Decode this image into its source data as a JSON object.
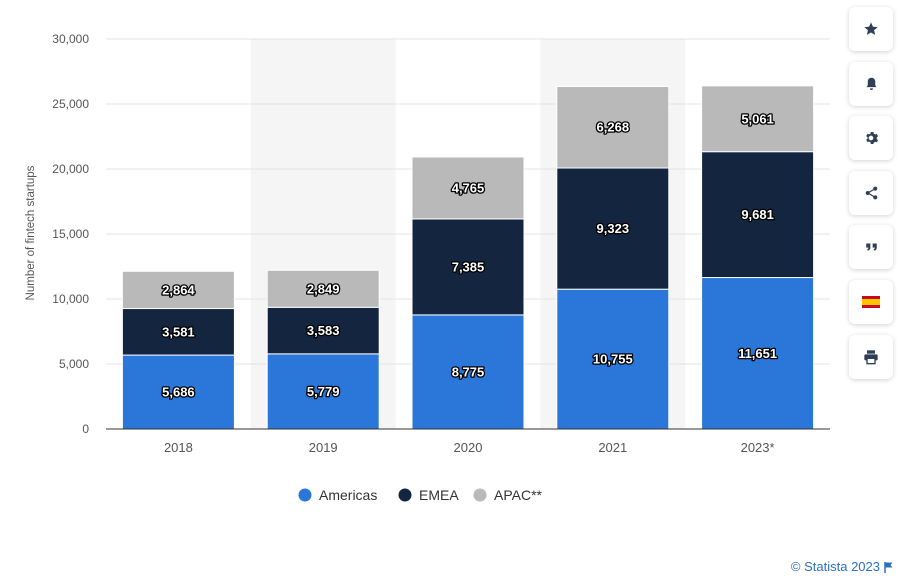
{
  "chart_data": {
    "type": "bar",
    "stacked": true,
    "categories": [
      "2018",
      "2019",
      "2020",
      "2021",
      "2023*"
    ],
    "series": [
      {
        "name": "Americas",
        "color": "#2a77d9",
        "values": [
          5686,
          5779,
          8775,
          10755,
          11651
        ]
      },
      {
        "name": "EMEA",
        "color": "#14253f",
        "values": [
          3581,
          3583,
          7385,
          9323,
          9681
        ]
      },
      {
        "name": "APAC**",
        "color": "#b9b9b9",
        "values": [
          2864,
          2849,
          4765,
          6268,
          5061
        ]
      }
    ],
    "data_labels": [
      [
        "5,686",
        "5,779",
        "8,775",
        "10,755",
        "11,651"
      ],
      [
        "3,581",
        "3,583",
        "7,385",
        "9,323",
        "9,681"
      ],
      [
        "2,864",
        "2,849",
        "4,765",
        "6,268",
        "5,061"
      ]
    ],
    "ylabel": "Number of fintech startups",
    "ylim": [
      0,
      30000
    ],
    "yticks": [
      0,
      5000,
      10000,
      15000,
      20000,
      25000,
      30000
    ],
    "ytick_labels": [
      "0",
      "5,000",
      "10,000",
      "15,000",
      "20,000",
      "25,000",
      "30,000"
    ],
    "grid": true,
    "legend_position": "bottom"
  },
  "toolbar": {
    "items": [
      {
        "name": "favorite",
        "icon": "star-icon"
      },
      {
        "name": "notification",
        "icon": "bell-icon"
      },
      {
        "name": "settings",
        "icon": "gear-icon"
      },
      {
        "name": "share",
        "icon": "share-icon"
      },
      {
        "name": "citation",
        "icon": "quote-icon"
      },
      {
        "name": "language",
        "icon": "spain-flag-icon"
      },
      {
        "name": "print",
        "icon": "printer-icon"
      }
    ]
  },
  "credit": {
    "text": "© Statista 2023",
    "icon": "flag-icon"
  },
  "colors": {
    "grid": "#e4e4e4",
    "band": "#f5f5f5",
    "axis_text": "#555555",
    "credit": "#2b6fc2"
  }
}
